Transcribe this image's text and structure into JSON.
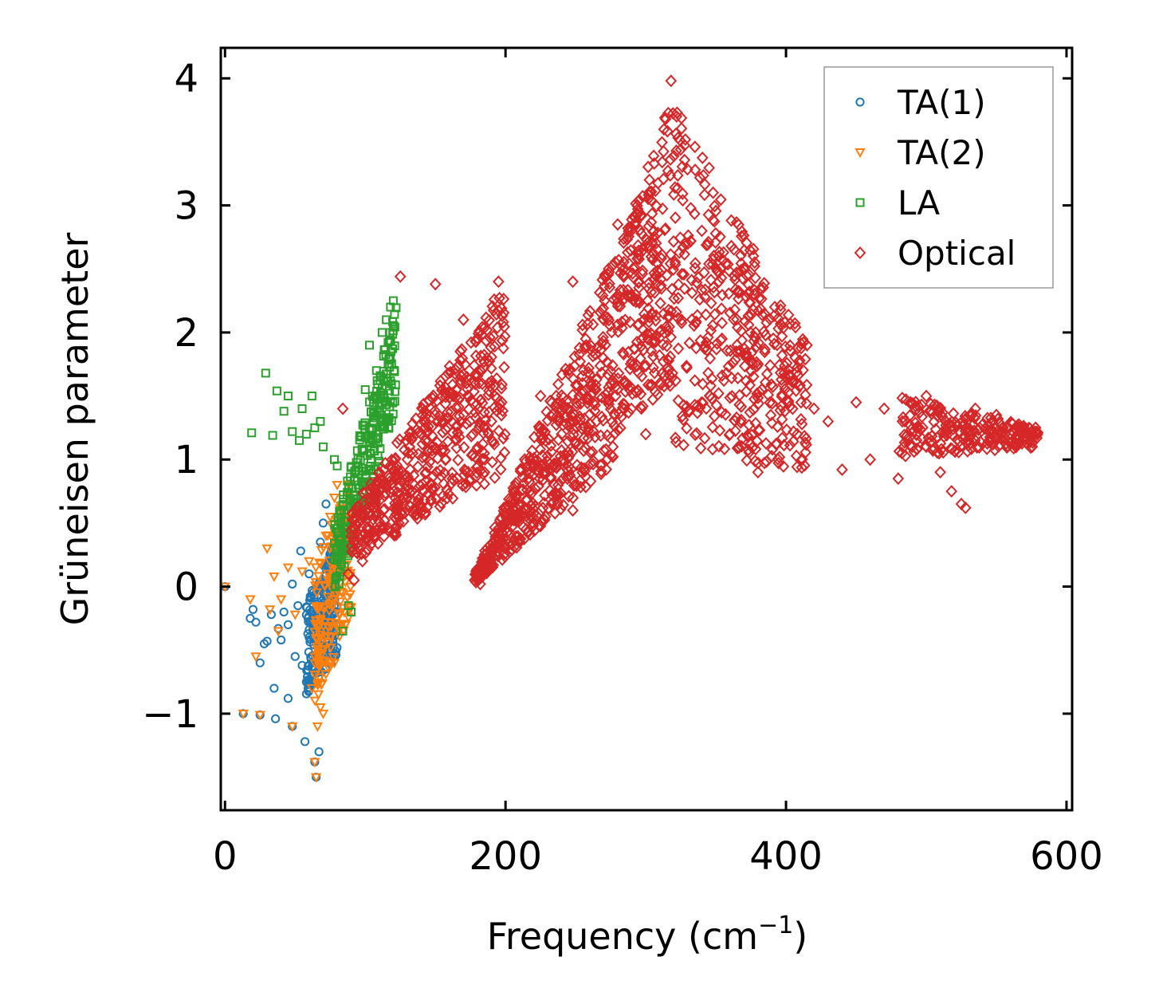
{
  "chart_data": {
    "type": "scatter",
    "title": "",
    "xlabel": "Frequency (cm",
    "xlabel_sup": "−1",
    "xlabel_tail": ")",
    "ylabel": "Grüneisen parameter",
    "xlim": [
      -3,
      604
    ],
    "ylim": [
      -1.76,
      4.24
    ],
    "xticks": [
      0,
      200,
      400,
      600
    ],
    "xtick_labels": [
      "0",
      "200",
      "400",
      "600"
    ],
    "yticks": [
      -1,
      0,
      1,
      2,
      3,
      4
    ],
    "ytick_labels": [
      "−1",
      "0",
      "1",
      "2",
      "3",
      "4"
    ],
    "grid": false,
    "legend_position": "top-right",
    "series": [
      {
        "name": "TA(1)",
        "marker": "circle",
        "color": "#1f77b4",
        "points": [
          [
            0,
            0
          ],
          [
            13,
            -1.0
          ],
          [
            18,
            -0.25
          ],
          [
            20,
            -0.18
          ],
          [
            22,
            -0.28
          ],
          [
            25,
            -1.01
          ],
          [
            25,
            -0.6
          ],
          [
            28,
            -0.45
          ],
          [
            30,
            -0.43
          ],
          [
            33,
            -0.22
          ],
          [
            35,
            -0.8
          ],
          [
            36,
            -1.04
          ],
          [
            38,
            -0.33
          ],
          [
            40,
            -0.42
          ],
          [
            42,
            -0.2
          ],
          [
            45,
            -0.3
          ],
          [
            45,
            -0.88
          ],
          [
            48,
            -1.1
          ],
          [
            48,
            0.02
          ],
          [
            50,
            -0.55
          ],
          [
            52,
            -0.15
          ],
          [
            54,
            0.28
          ],
          [
            55,
            -0.62
          ],
          [
            57,
            -1.22
          ],
          [
            60,
            0.1
          ],
          [
            60,
            -0.4
          ],
          [
            62,
            -0.7
          ],
          [
            64,
            -1.38
          ],
          [
            65,
            -1.5
          ],
          [
            67,
            -1.3
          ],
          [
            68,
            0.35
          ],
          [
            70,
            0.5
          ],
          [
            72,
            0.65
          ],
          [
            74,
            0.2
          ],
          [
            76,
            0.12
          ],
          [
            78,
            0.05
          ]
        ],
        "cluster": {
          "x_range": [
            58,
            80
          ],
          "y_top": [
            -0.1,
            0.4
          ],
          "y_bottom": [
            -0.85,
            -0.55
          ],
          "count": 260
        }
      },
      {
        "name": "TA(2)",
        "marker": "triangle-down",
        "color": "#ff7f0e",
        "points": [
          [
            0,
            0
          ],
          [
            13,
            -1.0
          ],
          [
            18,
            -0.1
          ],
          [
            22,
            -0.55
          ],
          [
            25,
            -1.01
          ],
          [
            30,
            0.3
          ],
          [
            32,
            -0.18
          ],
          [
            35,
            0.08
          ],
          [
            38,
            -0.35
          ],
          [
            40,
            -0.1
          ],
          [
            45,
            0.15
          ],
          [
            48,
            -1.1
          ],
          [
            50,
            -0.22
          ],
          [
            55,
            0.12
          ],
          [
            60,
            0.2
          ],
          [
            62,
            -0.8
          ],
          [
            64,
            -1.38
          ],
          [
            65,
            -1.5
          ],
          [
            66,
            -1.1
          ],
          [
            68,
            -0.95
          ],
          [
            70,
            -1.0
          ],
          [
            72,
            0.4
          ],
          [
            75,
            0.55
          ],
          [
            78,
            0.7
          ],
          [
            80,
            0.8
          ],
          [
            82,
            0.25
          ],
          [
            85,
            -0.2
          ],
          [
            78,
            -0.6
          ]
        ],
        "cluster": {
          "x_range": [
            64,
            90
          ],
          "y_top": [
            0.2,
            0.85
          ],
          "y_bottom": [
            -0.95,
            -0.2
          ],
          "count": 200
        }
      },
      {
        "name": "LA",
        "marker": "square",
        "color": "#2ca02c",
        "points": [
          [
            19,
            1.21
          ],
          [
            29,
            1.68
          ],
          [
            34,
            1.19
          ],
          [
            37,
            1.54
          ],
          [
            42,
            1.38
          ],
          [
            45,
            1.5
          ],
          [
            48,
            1.22
          ],
          [
            53,
            1.15
          ],
          [
            55,
            1.4
          ],
          [
            58,
            1.2
          ],
          [
            62,
            1.5
          ],
          [
            64,
            1.25
          ],
          [
            68,
            1.3
          ],
          [
            70,
            1.1
          ],
          [
            78,
            1.0
          ],
          [
            80,
            0.95
          ],
          [
            84,
            -0.35
          ],
          [
            88,
            -0.15
          ],
          [
            90,
            -0.2
          ],
          [
            95,
            0.8
          ],
          [
            100,
            1.55
          ],
          [
            103,
            1.9
          ],
          [
            108,
            1.7
          ],
          [
            112,
            2.0
          ],
          [
            115,
            2.1
          ],
          [
            118,
            2.2
          ],
          [
            120,
            2.25
          ]
        ],
        "cluster": {
          "x_range": [
            78,
            122
          ],
          "y_top": [
            0.5,
            2.2
          ],
          "y_bottom": [
            -0.1,
            1.4
          ],
          "count": 260
        }
      },
      {
        "name": "Optical",
        "marker": "diamond",
        "color": "#d62728",
        "points": [
          [
            84,
            1.4
          ],
          [
            88,
            0.1
          ],
          [
            92,
            0.05
          ],
          [
            98,
            0.2
          ],
          [
            110,
            0.9
          ],
          [
            125,
            2.44
          ],
          [
            130,
            1.0
          ],
          [
            150,
            2.38
          ],
          [
            170,
            2.1
          ],
          [
            195,
            2.4
          ],
          [
            190,
            1.3
          ],
          [
            185,
            0.9
          ],
          [
            178,
            0.05
          ],
          [
            182,
            0.02
          ],
          [
            200,
            0.3
          ],
          [
            215,
            0.9
          ],
          [
            225,
            1.5
          ],
          [
            240,
            1.2
          ],
          [
            248,
            2.4
          ],
          [
            248,
            0.6
          ],
          [
            255,
            1.6
          ],
          [
            270,
            2.1
          ],
          [
            280,
            2.85
          ],
          [
            285,
            1.6
          ],
          [
            295,
            2.4
          ],
          [
            300,
            1.2
          ],
          [
            310,
            1.6
          ],
          [
            318,
            3.98
          ],
          [
            322,
            3.7
          ],
          [
            330,
            2.7
          ],
          [
            340,
            2.8
          ],
          [
            348,
            3.1
          ],
          [
            352,
            2.6
          ],
          [
            360,
            1.2
          ],
          [
            370,
            2.5
          ],
          [
            380,
            0.9
          ],
          [
            392,
            2.2
          ],
          [
            408,
            1.2
          ],
          [
            415,
            1.9
          ],
          [
            420,
            1.4
          ],
          [
            430,
            1.3
          ],
          [
            440,
            0.92
          ],
          [
            450,
            1.45
          ],
          [
            460,
            1.0
          ],
          [
            470,
            1.4
          ],
          [
            480,
            0.85
          ],
          [
            490,
            1.1
          ],
          [
            500,
            1.5
          ],
          [
            510,
            0.9
          ],
          [
            518,
            0.75
          ],
          [
            525,
            0.65
          ],
          [
            528,
            0.62
          ],
          [
            535,
            1.4
          ],
          [
            550,
            1.35
          ],
          [
            565,
            1.25
          ],
          [
            575,
            1.22
          ],
          [
            578,
            1.25
          ]
        ],
        "cluster_segments": [
          {
            "x_range": [
              90,
              200
            ],
            "y_top": [
              0.6,
              2.4
            ],
            "y_bottom": [
              0.2,
              0.9
            ],
            "count": 520
          },
          {
            "x_range": [
              178,
              280
            ],
            "y_top": [
              0.1,
              2.7
            ],
            "y_bottom": [
              0.02,
              1.0
            ],
            "count": 520
          },
          {
            "x_range": [
              280,
              320
            ],
            "y_top": [
              2.6,
              3.9
            ],
            "y_bottom": [
              1.2,
              1.6
            ],
            "count": 260
          },
          {
            "x_range": [
              320,
              415
            ],
            "y_top": [
              3.8,
              1.9
            ],
            "y_bottom": [
              1.1,
              0.9
            ],
            "count": 420
          },
          {
            "x_range": [
              480,
              580
            ],
            "y_top": [
              1.5,
              1.25
            ],
            "y_bottom": [
              1.0,
              1.1
            ],
            "count": 240
          }
        ]
      }
    ]
  }
}
